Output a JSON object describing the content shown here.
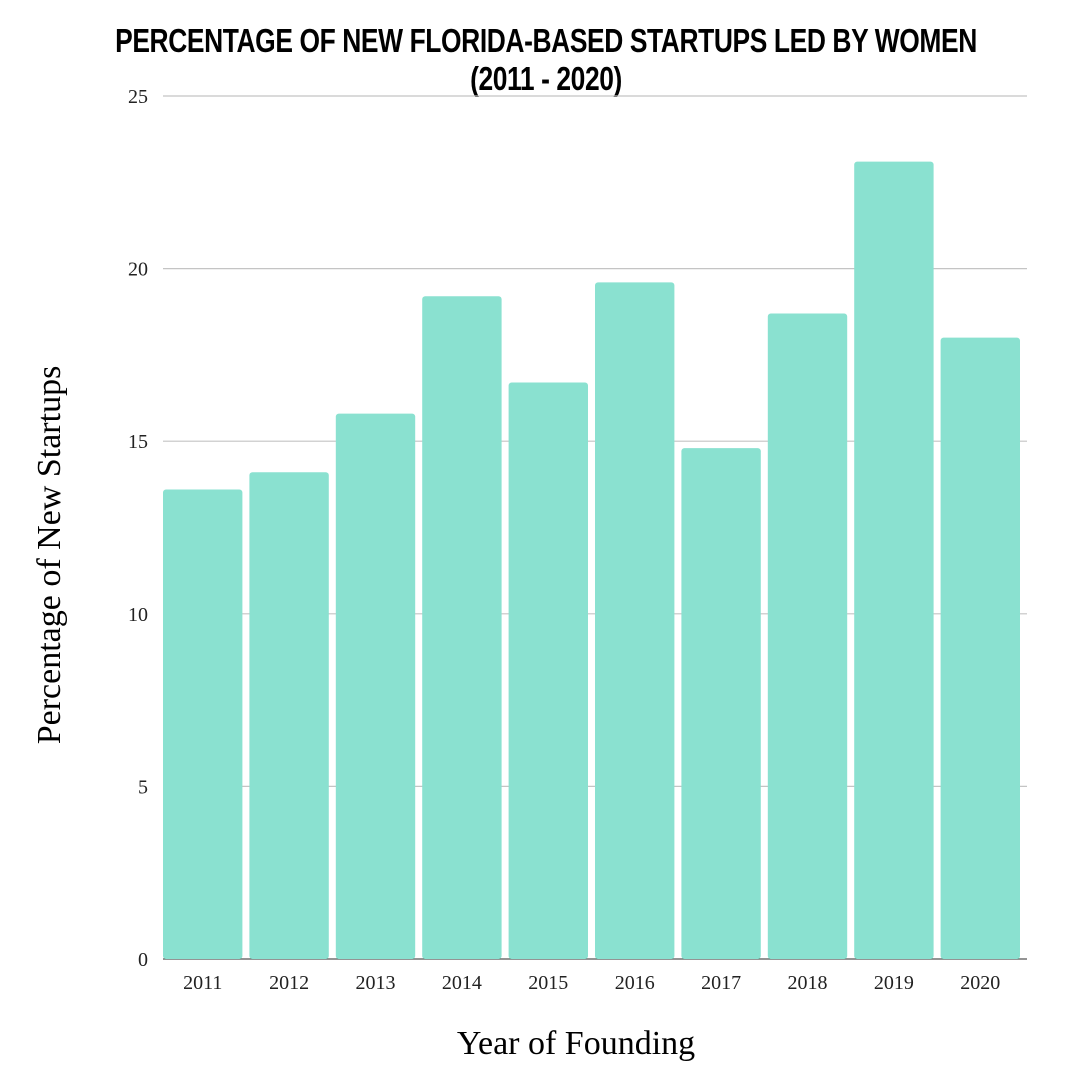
{
  "chart_data": {
    "type": "bar",
    "title": "PERCENTAGE OF NEW FLORIDA-BASED STARTUPS LED BY WOMEN (2011 - 2020)",
    "xlabel": "Year of Founding",
    "ylabel": "Percentage of New Startups",
    "categories": [
      "2011",
      "2012",
      "2013",
      "2014",
      "2015",
      "2016",
      "2017",
      "2018",
      "2019",
      "2020"
    ],
    "values": [
      13.6,
      14.1,
      15.8,
      19.2,
      16.7,
      19.6,
      14.8,
      18.7,
      23.1,
      18.0
    ],
    "ylim": [
      0,
      25
    ],
    "yticks": [
      0,
      5,
      10,
      15,
      20,
      25
    ],
    "grid": true,
    "legend": "none",
    "bar_color": "#8ae1d0"
  }
}
